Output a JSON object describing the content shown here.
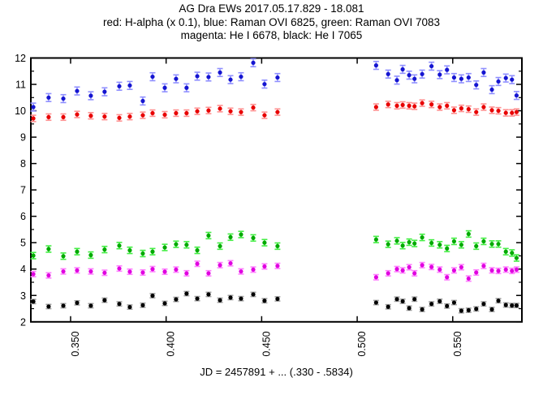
{
  "chart_data": {
    "type": "scatter",
    "title_lines": [
      "AG Dra EWs 2017.05.17.829 - 18.081",
      "red: H-alpha (x 0.1), blue: Raman OVI 6825, green: Raman OVI 7083",
      "magenta: He I 6678, black: He I 7065"
    ],
    "xlabel": "JD = 2457891 + ... (.330 - .5834)",
    "grid": false,
    "legend_position": "in-title",
    "xlim": [
      0.3292,
      0.5862
    ],
    "ylim": [
      2,
      12
    ],
    "xticks": {
      "values": [
        0.35,
        0.4,
        0.45,
        0.5,
        0.55
      ],
      "labels": [
        "0.350",
        "0.400",
        "0.450",
        "0.500",
        "0.550"
      ]
    },
    "yticks": {
      "values": [
        2,
        3,
        4,
        5,
        6,
        7,
        8,
        9,
        10,
        11,
        12
      ],
      "labels": [
        "2",
        "3",
        "4",
        "5",
        "6",
        "7",
        "8",
        "9",
        "10",
        "11",
        "12"
      ]
    },
    "y_minor_step": 0.5,
    "x": [
      0.3305,
      0.3385,
      0.3462,
      0.3534,
      0.3606,
      0.3678,
      0.3755,
      0.381,
      0.3878,
      0.3929,
      0.3993,
      0.4052,
      0.4107,
      0.4163,
      0.4222,
      0.4282,
      0.4337,
      0.4392,
      0.4456,
      0.4515,
      0.4583,
      0.5099,
      0.5162,
      0.5208,
      0.5238,
      0.5272,
      0.53,
      0.534,
      0.5389,
      0.5432,
      0.547,
      0.5507,
      0.5545,
      0.5583,
      0.5623,
      0.5662,
      0.5705,
      0.5739,
      0.5778,
      0.581,
      0.5834
    ],
    "series": [
      {
        "name": "H-alpha (x 0.1)",
        "color": "#e80000",
        "bar_color": "#ff9090",
        "err": 0.12,
        "values": [
          9.71,
          9.76,
          9.76,
          9.86,
          9.81,
          9.78,
          9.73,
          9.78,
          9.83,
          9.91,
          9.85,
          9.91,
          9.91,
          9.98,
          10.01,
          10.08,
          9.98,
          9.95,
          10.12,
          9.83,
          9.95,
          10.14,
          10.24,
          10.19,
          10.22,
          10.19,
          10.17,
          10.29,
          10.24,
          10.14,
          10.19,
          10.02,
          10.09,
          10.06,
          9.95,
          10.14,
          10.02,
          10.0,
          9.92,
          9.92,
          9.95
        ]
      },
      {
        "name": "Raman OVI 6825",
        "color": "#1515d0",
        "bar_color": "#9090ff",
        "err": 0.15,
        "values": [
          10.14,
          10.5,
          10.46,
          10.75,
          10.57,
          10.72,
          10.93,
          10.96,
          10.37,
          11.29,
          10.87,
          11.21,
          10.87,
          11.31,
          11.28,
          11.45,
          11.18,
          11.29,
          11.82,
          11.01,
          11.26,
          11.72,
          11.39,
          11.16,
          11.57,
          11.35,
          11.21,
          11.39,
          11.69,
          11.37,
          11.55,
          11.26,
          11.21,
          11.26,
          10.98,
          11.45,
          10.8,
          11.11,
          11.24,
          11.18,
          10.58
        ]
      },
      {
        "name": "Raman OVI 7083",
        "color": "#00aa00",
        "bar_color": "#44ee44",
        "err": 0.12,
        "values": [
          4.51,
          4.76,
          4.49,
          4.66,
          4.53,
          4.74,
          4.89,
          4.71,
          4.59,
          4.66,
          4.82,
          4.94,
          4.92,
          4.71,
          5.27,
          4.87,
          5.21,
          5.31,
          5.18,
          5.0,
          4.87,
          5.12,
          4.94,
          5.07,
          4.89,
          5.02,
          4.97,
          5.2,
          4.99,
          4.92,
          4.78,
          5.05,
          4.92,
          5.33,
          4.87,
          5.05,
          4.95,
          4.95,
          4.66,
          4.61,
          4.42
        ]
      },
      {
        "name": "He I 6678",
        "color": "#e000e0",
        "bar_color": "#ff80ff",
        "err": 0.1,
        "values": [
          3.81,
          3.76,
          3.91,
          3.95,
          3.91,
          3.86,
          4.02,
          3.9,
          3.87,
          4.0,
          3.9,
          3.98,
          3.84,
          4.2,
          3.84,
          4.15,
          4.22,
          3.91,
          3.98,
          4.1,
          4.12,
          3.69,
          3.84,
          4.0,
          3.95,
          4.07,
          3.84,
          4.15,
          4.08,
          3.98,
          3.69,
          3.95,
          4.07,
          3.64,
          3.87,
          4.12,
          3.95,
          3.93,
          3.98,
          3.93,
          3.98
        ]
      },
      {
        "name": "He I 7065",
        "color": "#000000",
        "bar_color": "#a0a0a0",
        "err": 0.08,
        "values": [
          2.77,
          2.58,
          2.61,
          2.72,
          2.61,
          2.82,
          2.68,
          2.56,
          2.63,
          2.99,
          2.7,
          2.85,
          3.07,
          2.88,
          3.04,
          2.82,
          2.92,
          2.88,
          3.04,
          2.8,
          2.87,
          2.73,
          2.57,
          2.86,
          2.78,
          2.52,
          2.86,
          2.47,
          2.68,
          2.78,
          2.6,
          2.73,
          2.42,
          2.44,
          2.49,
          2.68,
          2.47,
          2.8,
          2.64,
          2.62,
          2.62
        ]
      }
    ]
  }
}
